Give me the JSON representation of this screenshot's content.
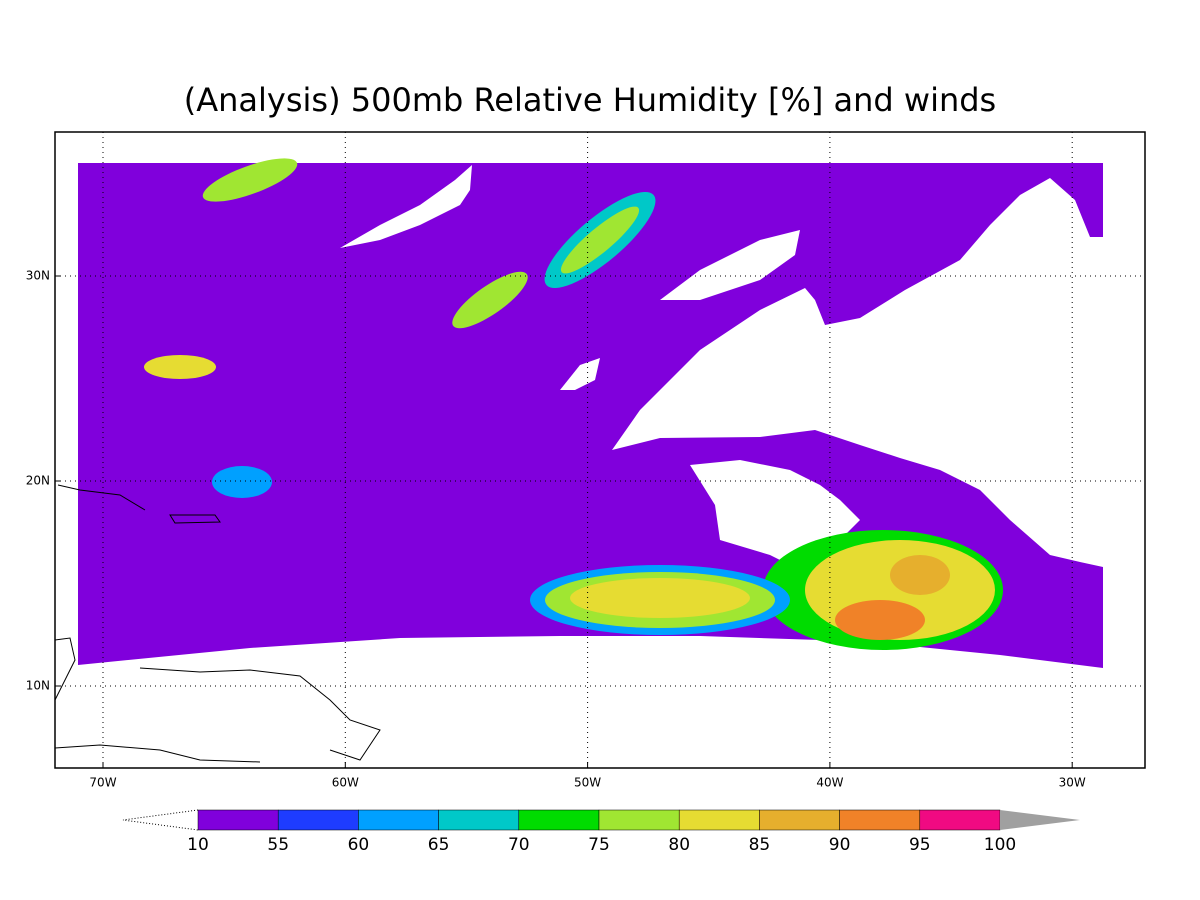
{
  "map": {
    "title": "(Analysis) 500mb Relative Humidity [%] and winds",
    "lon_ticks": [
      {
        "value": -70,
        "label": "70W"
      },
      {
        "value": -60,
        "label": "60W"
      },
      {
        "value": -50,
        "label": "50W"
      },
      {
        "value": -40,
        "label": "40W"
      },
      {
        "value": -30,
        "label": "30W"
      }
    ],
    "lat_ticks": [
      {
        "value": 10,
        "label": "10N"
      },
      {
        "value": 20,
        "label": "20N"
      },
      {
        "value": 30,
        "label": "30N"
      }
    ],
    "colorbar": {
      "levels": [
        10,
        55,
        60,
        65,
        70,
        75,
        80,
        85,
        90,
        95,
        100
      ],
      "colors": [
        "#8000dc",
        "#1e3cff",
        "#00a0ff",
        "#00c8c8",
        "#00dc00",
        "#a0e632",
        "#e6dc32",
        "#e6af2d",
        "#f08228",
        "#f00a82"
      ],
      "over_color": "#a0a0a0"
    }
  }
}
